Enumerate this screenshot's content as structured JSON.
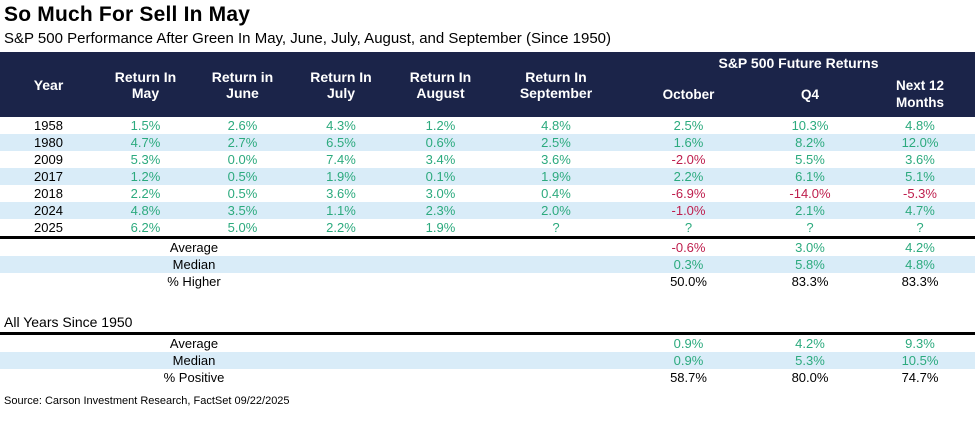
{
  "title": "So Much For Sell In May",
  "subtitle": "S&P 500 Performance After Green In May, June, July, August, and September (Since 1950)",
  "source": "Source: Carson Investment Research, FactSet 09/22/2025",
  "colors": {
    "header_bg": "#1B2449",
    "stripe": "#D9ECF8",
    "positive_green": "#2CAA7E",
    "negative_red": "#BE1E4D",
    "text": "#000000"
  },
  "chart_data": {
    "type": "table",
    "title": "So Much For Sell In May",
    "subtitle": "S&P 500 Performance After Green In May, June, July, August, and September (Since 1950)",
    "group_header": "S&P 500 Future Returns",
    "columns": [
      "Year",
      "Return In May",
      "Return in June",
      "Return In July",
      "Return In August",
      "Return In September",
      "October",
      "Q4",
      "Next 12 Months"
    ],
    "rows": [
      {
        "year": "1958",
        "values": [
          "1.5%",
          "2.6%",
          "4.3%",
          "1.2%",
          "4.8%",
          "2.5%",
          "10.3%",
          "4.8%"
        ]
      },
      {
        "year": "1980",
        "values": [
          "4.7%",
          "2.7%",
          "6.5%",
          "0.6%",
          "2.5%",
          "1.6%",
          "8.2%",
          "12.0%"
        ]
      },
      {
        "year": "2009",
        "values": [
          "5.3%",
          "0.0%",
          "7.4%",
          "3.4%",
          "3.6%",
          "-2.0%",
          "5.5%",
          "3.6%"
        ]
      },
      {
        "year": "2017",
        "values": [
          "1.2%",
          "0.5%",
          "1.9%",
          "0.1%",
          "1.9%",
          "2.2%",
          "6.1%",
          "5.1%"
        ]
      },
      {
        "year": "2018",
        "values": [
          "2.2%",
          "0.5%",
          "3.6%",
          "3.0%",
          "0.4%",
          "-6.9%",
          "-14.0%",
          "-5.3%"
        ]
      },
      {
        "year": "2024",
        "values": [
          "4.8%",
          "3.5%",
          "1.1%",
          "2.3%",
          "2.0%",
          "-1.0%",
          "2.1%",
          "4.7%"
        ]
      },
      {
        "year": "2025",
        "values": [
          "6.2%",
          "5.0%",
          "2.2%",
          "1.9%",
          "?",
          "?",
          "?",
          "?"
        ]
      }
    ],
    "summary_rows": [
      {
        "label": "Average",
        "october": "-0.6%",
        "q4": "3.0%",
        "next_12_months": "4.2%",
        "plain": false
      },
      {
        "label": "Median",
        "october": "0.3%",
        "q4": "5.8%",
        "next_12_months": "4.8%",
        "plain": false
      },
      {
        "label": "% Higher",
        "october": "50.0%",
        "q4": "83.3%",
        "next_12_months": "83.3%",
        "plain": true
      }
    ],
    "all_years": {
      "section_label": "All Years Since 1950",
      "summary_rows": [
        {
          "label": "Average",
          "october": "0.9%",
          "q4": "4.2%",
          "next_12_months": "9.3%",
          "plain": false
        },
        {
          "label": "Median",
          "october": "0.9%",
          "q4": "5.3%",
          "next_12_months": "10.5%",
          "plain": false
        },
        {
          "label": "% Positive",
          "october": "58.7%",
          "q4": "80.0%",
          "next_12_months": "74.7%",
          "plain": true
        }
      ]
    }
  }
}
